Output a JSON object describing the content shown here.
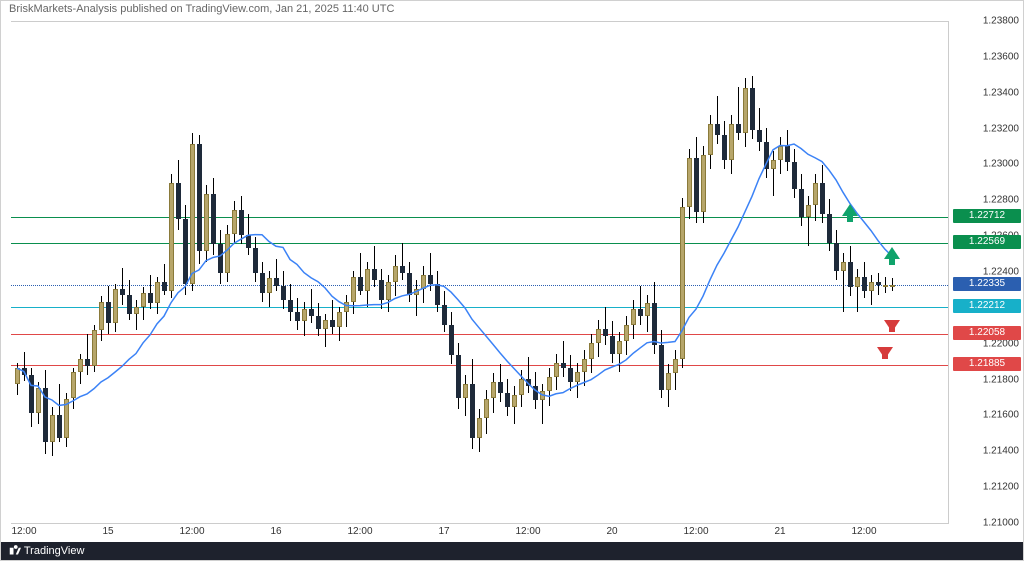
{
  "header_text": "BriskMarkets-Analysis published on TradingView.com, Jan 21, 2025 11:40 UTC",
  "footer_text": "TradingView",
  "colors": {
    "bg": "#ffffff",
    "candle_up_fill": "#b7a66a",
    "candle_up_border": "#8a7a3a",
    "candle_dn_fill": "#1e2a3a",
    "candle_dn_border": "#1e2a3a",
    "ma_line": "#3b82f6",
    "hl_green": "#0a8f4e",
    "hl_cyan": "#17b0c9",
    "hl_red": "#e04848",
    "hl_blue": "#2b5fb0",
    "dotted": "#555555",
    "footer_bg": "#1e222d",
    "arrow_up": "#0fa36b",
    "arrow_dn": "#d63b3b"
  },
  "yaxis": {
    "min": 1.21,
    "max": 1.238,
    "step": 0.002,
    "fmt_decimals": 5
  },
  "xaxis": {
    "labels": [
      {
        "i": 1,
        "text": "12:00"
      },
      {
        "i": 13,
        "text": "15"
      },
      {
        "i": 25,
        "text": "12:00"
      },
      {
        "i": 37,
        "text": "16"
      },
      {
        "i": 49,
        "text": "12:00"
      },
      {
        "i": 61,
        "text": "17"
      },
      {
        "i": 73,
        "text": "12:00"
      },
      {
        "i": 85,
        "text": "20"
      },
      {
        "i": 97,
        "text": "12:00"
      },
      {
        "i": 109,
        "text": "21"
      },
      {
        "i": 121,
        "text": "12:00"
      }
    ]
  },
  "hlines": [
    {
      "y": 1.22712,
      "colorkey": "hl_green",
      "label": "1.22712",
      "label_bg": "#0a8f4e"
    },
    {
      "y": 1.22569,
      "colorkey": "hl_green",
      "label": "1.22569",
      "label_bg": "#0a8f4e"
    },
    {
      "y": 1.22335,
      "colorkey": "hl_blue",
      "label": "1.22335",
      "label_bg": "#2b5fb0",
      "dotted": true
    },
    {
      "y": 1.22212,
      "colorkey": "hl_cyan",
      "label": "1.22212",
      "label_bg": "#17b0c9"
    },
    {
      "y": 1.22058,
      "colorkey": "hl_red",
      "label": "1.22058",
      "label_bg": "#e04848"
    },
    {
      "y": 1.21885,
      "colorkey": "hl_red",
      "label": "1.21885",
      "label_bg": "#e04848"
    }
  ],
  "current_price_dotted": 1.22335,
  "arrows": [
    {
      "i": 119,
      "y": 1.2272,
      "dir": "up"
    },
    {
      "i": 125,
      "y": 1.2248,
      "dir": "up"
    },
    {
      "i": 125,
      "y": 1.2214,
      "dir": "dn"
    },
    {
      "i": 124,
      "y": 1.2199,
      "dir": "dn"
    }
  ],
  "candle_spacing": 7.0,
  "candle_width": 5,
  "n_candles": 126,
  "ohlc": [
    [
      1.2178,
      1.219,
      1.2172,
      1.2187
    ],
    [
      1.2187,
      1.2196,
      1.218,
      1.2183
    ],
    [
      1.2183,
      1.2187,
      1.2154,
      1.2162
    ],
    [
      1.2162,
      1.2179,
      1.2156,
      1.2176
    ],
    [
      1.2176,
      1.2186,
      1.2139,
      1.2146
    ],
    [
      1.2146,
      1.2165,
      1.2138,
      1.2161
    ],
    [
      1.2161,
      1.2178,
      1.2146,
      1.2148
    ],
    [
      1.2148,
      1.2173,
      1.2143,
      1.217
    ],
    [
      1.217,
      1.2187,
      1.2164,
      1.2185
    ],
    [
      1.2185,
      1.2195,
      1.2178,
      1.2192
    ],
    [
      1.2192,
      1.2206,
      1.2183,
      1.2188
    ],
    [
      1.2188,
      1.2211,
      1.2185,
      1.2208
    ],
    [
      1.2208,
      1.2227,
      1.2202,
      1.2224
    ],
    [
      1.2224,
      1.2233,
      1.2206,
      1.2212
    ],
    [
      1.2212,
      1.2234,
      1.2207,
      1.2231
    ],
    [
      1.2231,
      1.2243,
      1.2222,
      1.2228
    ],
    [
      1.2228,
      1.2236,
      1.2214,
      1.2217
    ],
    [
      1.2217,
      1.2225,
      1.2208,
      1.2221
    ],
    [
      1.2221,
      1.2232,
      1.2214,
      1.2229
    ],
    [
      1.2229,
      1.2239,
      1.222,
      1.2223
    ],
    [
      1.2223,
      1.2238,
      1.2217,
      1.2235
    ],
    [
      1.2235,
      1.2245,
      1.2228,
      1.223
    ],
    [
      1.223,
      1.2295,
      1.2226,
      1.229
    ],
    [
      1.229,
      1.2303,
      1.2264,
      1.227
    ],
    [
      1.227,
      1.2278,
      1.2228,
      1.2234
    ],
    [
      1.2234,
      1.2318,
      1.223,
      1.2312
    ],
    [
      1.2312,
      1.2317,
      1.2245,
      1.2252
    ],
    [
      1.2252,
      1.2289,
      1.2246,
      1.2284
    ],
    [
      1.2284,
      1.2293,
      1.225,
      1.2256
    ],
    [
      1.2256,
      1.2264,
      1.2234,
      1.224
    ],
    [
      1.224,
      1.2267,
      1.2235,
      1.2262
    ],
    [
      1.2262,
      1.228,
      1.2256,
      1.2275
    ],
    [
      1.2275,
      1.2283,
      1.2256,
      1.2261
    ],
    [
      1.2261,
      1.2273,
      1.225,
      1.2254
    ],
    [
      1.2254,
      1.226,
      1.2235,
      1.224
    ],
    [
      1.224,
      1.2246,
      1.2224,
      1.2229
    ],
    [
      1.2229,
      1.2241,
      1.2221,
      1.2237
    ],
    [
      1.2237,
      1.2248,
      1.223,
      1.2233
    ],
    [
      1.2233,
      1.2241,
      1.222,
      1.2225
    ],
    [
      1.2225,
      1.2234,
      1.2213,
      1.2218
    ],
    [
      1.2218,
      1.2226,
      1.2208,
      1.2213
    ],
    [
      1.2213,
      1.2224,
      1.2205,
      1.222
    ],
    [
      1.222,
      1.2231,
      1.2212,
      1.2216
    ],
    [
      1.2216,
      1.2223,
      1.2205,
      1.2209
    ],
    [
      1.2209,
      1.2217,
      1.2199,
      1.2214
    ],
    [
      1.2214,
      1.2225,
      1.2206,
      1.221
    ],
    [
      1.221,
      1.2221,
      1.2202,
      1.2218
    ],
    [
      1.2218,
      1.2228,
      1.221,
      1.2224
    ],
    [
      1.2224,
      1.2241,
      1.2217,
      1.2238
    ],
    [
      1.2238,
      1.2251,
      1.2228,
      1.223
    ],
    [
      1.223,
      1.2246,
      1.2221,
      1.2242
    ],
    [
      1.2242,
      1.2255,
      1.2232,
      1.2236
    ],
    [
      1.2236,
      1.2242,
      1.222,
      1.2225
    ],
    [
      1.2225,
      1.2239,
      1.2218,
      1.2235
    ],
    [
      1.2235,
      1.225,
      1.2227,
      1.2244
    ],
    [
      1.2244,
      1.2257,
      1.2236,
      1.224
    ],
    [
      1.224,
      1.2246,
      1.2224,
      1.2228
    ],
    [
      1.2228,
      1.2236,
      1.2216,
      1.2231
    ],
    [
      1.2231,
      1.2244,
      1.2223,
      1.2239
    ],
    [
      1.2239,
      1.2251,
      1.223,
      1.2234
    ],
    [
      1.2234,
      1.2241,
      1.2218,
      1.2222
    ],
    [
      1.2222,
      1.223,
      1.2207,
      1.2211
    ],
    [
      1.2211,
      1.2218,
      1.2189,
      1.2194
    ],
    [
      1.2194,
      1.2201,
      1.2164,
      1.217
    ],
    [
      1.217,
      1.2183,
      1.216,
      1.2178
    ],
    [
      1.2178,
      1.2192,
      1.2142,
      1.2148
    ],
    [
      1.2148,
      1.2164,
      1.214,
      1.2159
    ],
    [
      1.2159,
      1.2175,
      1.215,
      1.217
    ],
    [
      1.217,
      1.2184,
      1.2162,
      1.2179
    ],
    [
      1.2179,
      1.2189,
      1.2168,
      1.2173
    ],
    [
      1.2173,
      1.2181,
      1.216,
      1.2165
    ],
    [
      1.2165,
      1.2177,
      1.2156,
      1.2172
    ],
    [
      1.2172,
      1.2186,
      1.2165,
      1.2181
    ],
    [
      1.2181,
      1.2193,
      1.2173,
      1.2177
    ],
    [
      1.2177,
      1.2185,
      1.2164,
      1.2169
    ],
    [
      1.2169,
      1.2178,
      1.2156,
      1.2174
    ],
    [
      1.2174,
      1.2187,
      1.2166,
      1.2182
    ],
    [
      1.2182,
      1.2195,
      1.2175,
      1.219
    ],
    [
      1.219,
      1.2202,
      1.2182,
      1.2187
    ],
    [
      1.2187,
      1.2194,
      1.2174,
      1.2179
    ],
    [
      1.2179,
      1.219,
      1.217,
      1.2185
    ],
    [
      1.2185,
      1.2197,
      1.2177,
      1.2192
    ],
    [
      1.2192,
      1.2206,
      1.2184,
      1.2201
    ],
    [
      1.2201,
      1.2214,
      1.2193,
      1.2209
    ],
    [
      1.2209,
      1.2221,
      1.22,
      1.2205
    ],
    [
      1.2205,
      1.2213,
      1.219,
      1.2195
    ],
    [
      1.2195,
      1.2207,
      1.2185,
      1.2202
    ],
    [
      1.2202,
      1.2216,
      1.2194,
      1.2211
    ],
    [
      1.2211,
      1.2225,
      1.2203,
      1.222
    ],
    [
      1.222,
      1.2233,
      1.2211,
      1.2216
    ],
    [
      1.2216,
      1.2228,
      1.2207,
      1.2223
    ],
    [
      1.2223,
      1.2235,
      1.2195,
      1.22
    ],
    [
      1.22,
      1.2208,
      1.217,
      1.2175
    ],
    [
      1.2175,
      1.2189,
      1.2165,
      1.2184
    ],
    [
      1.2184,
      1.2197,
      1.2175,
      1.2192
    ],
    [
      1.2192,
      1.2282,
      1.2187,
      1.2277
    ],
    [
      1.2277,
      1.2309,
      1.227,
      1.2304
    ],
    [
      1.2304,
      1.2316,
      1.2268,
      1.2274
    ],
    [
      1.2274,
      1.2311,
      1.2268,
      1.2306
    ],
    [
      1.2306,
      1.2328,
      1.2298,
      1.2323
    ],
    [
      1.2323,
      1.2339,
      1.2312,
      1.2317
    ],
    [
      1.2317,
      1.2325,
      1.2298,
      1.2303
    ],
    [
      1.2303,
      1.2328,
      1.2295,
      1.2323
    ],
    [
      1.2323,
      1.2344,
      1.2314,
      1.2318
    ],
    [
      1.2318,
      1.2349,
      1.231,
      1.2343
    ],
    [
      1.2343,
      1.235,
      1.2315,
      1.232
    ],
    [
      1.232,
      1.2332,
      1.2308,
      1.2313
    ],
    [
      1.2313,
      1.2321,
      1.2293,
      1.2298
    ],
    [
      1.2298,
      1.2308,
      1.2283,
      1.2303
    ],
    [
      1.2303,
      1.2316,
      1.2295,
      1.2311
    ],
    [
      1.2311,
      1.232,
      1.2297,
      1.2302
    ],
    [
      1.2302,
      1.2309,
      1.2282,
      1.2287
    ],
    [
      1.2287,
      1.2295,
      1.2266,
      1.2271
    ],
    [
      1.2271,
      1.2283,
      1.2255,
      1.2278
    ],
    [
      1.2278,
      1.2295,
      1.2269,
      1.229
    ],
    [
      1.229,
      1.23,
      1.2268,
      1.2273
    ],
    [
      1.2273,
      1.2281,
      1.2252,
      1.2257
    ],
    [
      1.2257,
      1.2264,
      1.2236,
      1.2241
    ],
    [
      1.2241,
      1.2251,
      1.2218,
      1.2246
    ],
    [
      1.2246,
      1.2255,
      1.2227,
      1.2232
    ],
    [
      1.2232,
      1.2242,
      1.2218,
      1.2238
    ],
    [
      1.2238,
      1.2246,
      1.2226,
      1.223
    ],
    [
      1.223,
      1.2239,
      1.2222,
      1.2235
    ],
    [
      1.2235,
      1.224,
      1.2228,
      1.22335
    ],
    [
      1.22335,
      1.2238,
      1.2229,
      1.22335
    ],
    [
      1.22335,
      1.2237,
      1.223,
      1.22335
    ]
  ],
  "ma_period": 14
}
